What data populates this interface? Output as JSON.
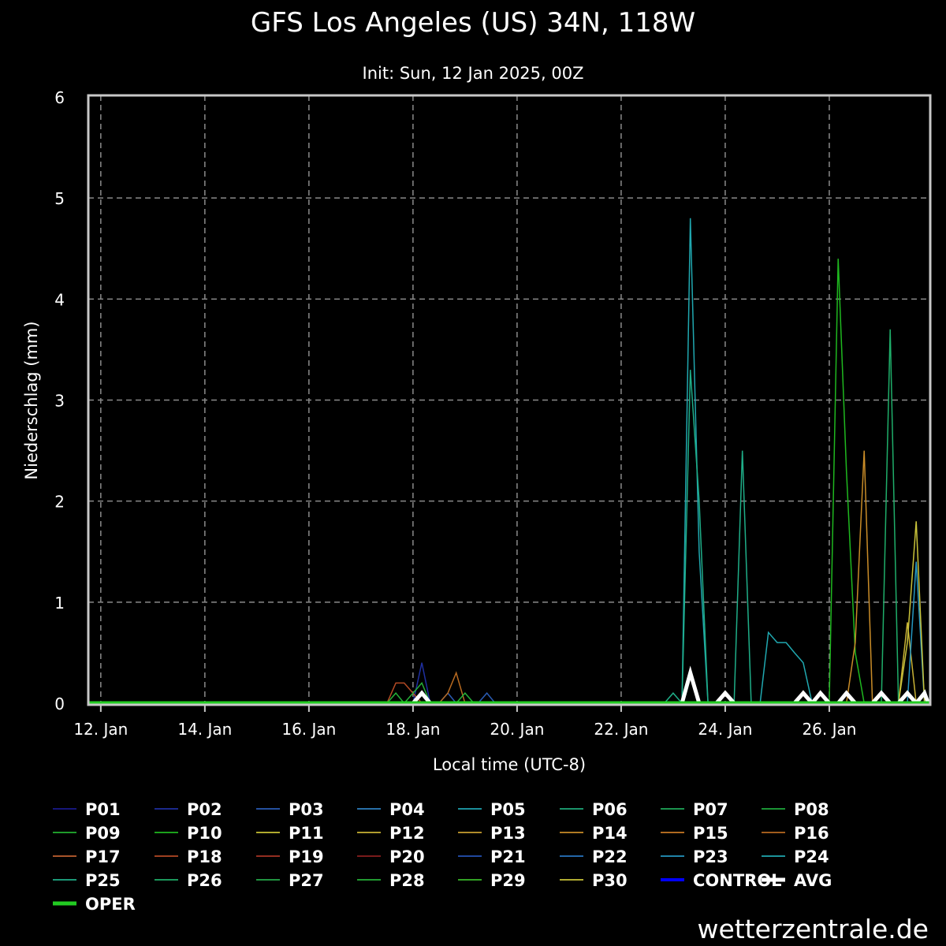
{
  "title": "GFS Los Angeles (US) 34N, 118W",
  "subtitle": "Init: Sun, 12 Jan 2025, 00Z",
  "watermark": "wetterzentrale.de",
  "chart_data": {
    "type": "line",
    "ylabel": "Niederschlag (mm)",
    "xlabel": "Local time (UTC-8)",
    "ylim": [
      0,
      6
    ],
    "y_ticks": [
      0,
      1,
      2,
      3,
      4,
      5,
      6
    ],
    "x_unit": "days since 12. Jan 00:00 local",
    "xlim": [
      -0.24,
      15.94
    ],
    "x_ticks": [
      {
        "x": 0,
        "label": "12. Jan"
      },
      {
        "x": 2,
        "label": "14. Jan"
      },
      {
        "x": 4,
        "label": "16. Jan"
      },
      {
        "x": 6,
        "label": "18. Jan"
      },
      {
        "x": 8,
        "label": "20. Jan"
      },
      {
        "x": 10,
        "label": "22. Jan"
      },
      {
        "x": 12,
        "label": "24. Jan"
      },
      {
        "x": 14,
        "label": "26. Jan"
      }
    ],
    "grid": true,
    "legend_placement": "bottom",
    "series": [
      {
        "name": "P01",
        "color": "#1a1a8c",
        "width": 1.5,
        "points": []
      },
      {
        "name": "P02",
        "color": "#1f2fa0",
        "width": 1.5,
        "points": [
          [
            -0.2,
            0
          ],
          [
            6.0,
            0
          ],
          [
            6.17,
            0.4
          ],
          [
            6.33,
            0
          ],
          [
            15.9,
            0
          ]
        ]
      },
      {
        "name": "P03",
        "color": "#2a5cb4",
        "width": 1.5,
        "points": [
          [
            -0.2,
            0
          ],
          [
            6.5,
            0
          ],
          [
            6.67,
            0.1
          ],
          [
            6.83,
            0
          ],
          [
            7.25,
            0
          ],
          [
            7.42,
            0.1
          ],
          [
            7.58,
            0
          ],
          [
            15.9,
            0
          ]
        ]
      },
      {
        "name": "P04",
        "color": "#2e7fbf",
        "width": 1.5,
        "points": []
      },
      {
        "name": "P05",
        "color": "#1fa3b0",
        "width": 1.5,
        "points": []
      },
      {
        "name": "P06",
        "color": "#1ea87a",
        "width": 1.5,
        "points": []
      },
      {
        "name": "P07",
        "color": "#1fa85a",
        "width": 1.5,
        "points": []
      },
      {
        "name": "P08",
        "color": "#1ea83c",
        "width": 1.5,
        "points": []
      },
      {
        "name": "P09",
        "color": "#22b030",
        "width": 1.5,
        "points": []
      },
      {
        "name": "P10",
        "color": "#1fb81f",
        "width": 1.5,
        "points": [
          [
            -0.2,
            0
          ],
          [
            14.0,
            0
          ],
          [
            14.17,
            4.4
          ],
          [
            14.33,
            2.3
          ],
          [
            14.5,
            0.5
          ],
          [
            14.67,
            0
          ],
          [
            15.9,
            0
          ]
        ]
      },
      {
        "name": "P11",
        "color": "#c9c235",
        "width": 1.5,
        "points": []
      },
      {
        "name": "P12",
        "color": "#c9b235",
        "width": 1.5,
        "points": [
          [
            -0.2,
            0
          ],
          [
            15.33,
            0
          ],
          [
            15.5,
            0.8
          ],
          [
            15.67,
            0
          ],
          [
            15.9,
            0
          ]
        ]
      },
      {
        "name": "P13",
        "color": "#c9a030",
        "width": 1.5,
        "points": []
      },
      {
        "name": "P14",
        "color": "#c98c28",
        "width": 1.5,
        "points": [
          [
            -0.2,
            0
          ],
          [
            14.33,
            0
          ],
          [
            14.5,
            0.6
          ],
          [
            14.67,
            2.5
          ],
          [
            14.83,
            0
          ],
          [
            15.9,
            0
          ]
        ]
      },
      {
        "name": "P15",
        "color": "#c97a25",
        "width": 1.5,
        "points": []
      },
      {
        "name": "P16",
        "color": "#b86a20",
        "width": 1.5,
        "points": [
          [
            -0.2,
            0
          ],
          [
            6.5,
            0
          ],
          [
            6.67,
            0.1
          ],
          [
            6.83,
            0.3
          ],
          [
            7.0,
            0
          ],
          [
            15.9,
            0
          ]
        ]
      },
      {
        "name": "P17",
        "color": "#c06030",
        "width": 1.5,
        "points": []
      },
      {
        "name": "P18",
        "color": "#b44a24",
        "width": 1.5,
        "points": [
          [
            -0.2,
            0
          ],
          [
            5.5,
            0
          ],
          [
            5.67,
            0.2
          ],
          [
            5.83,
            0.2
          ],
          [
            6.0,
            0.1
          ],
          [
            6.17,
            0
          ],
          [
            15.9,
            0
          ]
        ]
      },
      {
        "name": "P19",
        "color": "#a83524",
        "width": 1.5,
        "points": []
      },
      {
        "name": "P20",
        "color": "#8c1f1f",
        "width": 1.5,
        "points": []
      },
      {
        "name": "P21",
        "color": "#2452b4",
        "width": 1.5,
        "points": []
      },
      {
        "name": "P22",
        "color": "#2874c0",
        "width": 1.5,
        "points": []
      },
      {
        "name": "P23",
        "color": "#2596c0",
        "width": 1.5,
        "points": [
          [
            -0.2,
            0
          ],
          [
            15.5,
            0
          ],
          [
            15.67,
            1.4
          ],
          [
            15.83,
            0
          ],
          [
            15.9,
            0
          ]
        ]
      },
      {
        "name": "P24",
        "color": "#20a8b0",
        "width": 1.5,
        "points": [
          [
            -0.2,
            0
          ],
          [
            11.17,
            0
          ],
          [
            11.33,
            4.8
          ],
          [
            11.5,
            1.5
          ],
          [
            11.67,
            0
          ],
          [
            12.67,
            0
          ],
          [
            12.83,
            0.7
          ],
          [
            13.0,
            0.6
          ],
          [
            13.17,
            0.6
          ],
          [
            13.33,
            0.5
          ],
          [
            13.5,
            0.4
          ],
          [
            13.67,
            0
          ],
          [
            15.9,
            0
          ]
        ]
      },
      {
        "name": "P25",
        "color": "#1fae88",
        "width": 1.5,
        "points": [
          [
            -0.2,
            0
          ],
          [
            10.83,
            0
          ],
          [
            11.0,
            0.1
          ],
          [
            11.17,
            0
          ],
          [
            11.33,
            3.3
          ],
          [
            11.5,
            2.0
          ],
          [
            11.67,
            0
          ],
          [
            12.17,
            0
          ],
          [
            12.33,
            2.5
          ],
          [
            12.5,
            0
          ],
          [
            15.9,
            0
          ]
        ]
      },
      {
        "name": "P26",
        "color": "#1fae6a",
        "width": 1.5,
        "points": [
          [
            -0.2,
            0
          ],
          [
            15.0,
            0
          ],
          [
            15.17,
            3.7
          ],
          [
            15.33,
            0
          ],
          [
            15.9,
            0
          ]
        ]
      },
      {
        "name": "P27",
        "color": "#24a84a",
        "width": 1.5,
        "points": [
          [
            -0.2,
            0
          ],
          [
            14.83,
            0
          ],
          [
            15.0,
            0.1
          ],
          [
            15.17,
            0
          ],
          [
            15.9,
            0
          ]
        ]
      },
      {
        "name": "P28",
        "color": "#26b038",
        "width": 1.5,
        "points": [
          [
            -0.2,
            0
          ],
          [
            5.5,
            0
          ],
          [
            5.67,
            0.1
          ],
          [
            5.83,
            0
          ],
          [
            6.0,
            0.1
          ],
          [
            6.17,
            0.2
          ],
          [
            6.33,
            0
          ],
          [
            6.5,
            0
          ],
          [
            6.67,
            0
          ],
          [
            6.83,
            0
          ],
          [
            7.0,
            0.1
          ],
          [
            7.17,
            0
          ],
          [
            15.9,
            0
          ]
        ]
      },
      {
        "name": "P29",
        "color": "#3ab82a",
        "width": 1.5,
        "points": []
      },
      {
        "name": "P30",
        "color": "#c8c23a",
        "width": 1.5,
        "points": [
          [
            -0.2,
            0
          ],
          [
            15.33,
            0
          ],
          [
            15.5,
            0.6
          ],
          [
            15.67,
            1.8
          ],
          [
            15.83,
            0
          ],
          [
            15.9,
            0
          ]
        ]
      },
      {
        "name": "CONTROL",
        "color": "#0000ff",
        "width": 3,
        "points": []
      },
      {
        "name": "AVG",
        "color": "#ffffff",
        "width": 5,
        "points": [
          [
            -0.2,
            0
          ],
          [
            6.0,
            0
          ],
          [
            6.17,
            0.1
          ],
          [
            6.33,
            0
          ],
          [
            11.17,
            0
          ],
          [
            11.33,
            0.3
          ],
          [
            11.5,
            0
          ],
          [
            11.83,
            0
          ],
          [
            12.0,
            0.1
          ],
          [
            12.17,
            0
          ],
          [
            13.33,
            0
          ],
          [
            13.5,
            0.1
          ],
          [
            13.67,
            0
          ],
          [
            13.83,
            0.1
          ],
          [
            14.0,
            0
          ],
          [
            14.17,
            0
          ],
          [
            14.33,
            0.1
          ],
          [
            14.5,
            0
          ],
          [
            14.83,
            0
          ],
          [
            15.0,
            0.1
          ],
          [
            15.17,
            0
          ],
          [
            15.33,
            0
          ],
          [
            15.5,
            0.1
          ],
          [
            15.67,
            0
          ],
          [
            15.83,
            0.1
          ],
          [
            15.9,
            0
          ]
        ]
      },
      {
        "name": "OPER",
        "color": "#22cc22",
        "width": 5,
        "points": []
      }
    ]
  }
}
